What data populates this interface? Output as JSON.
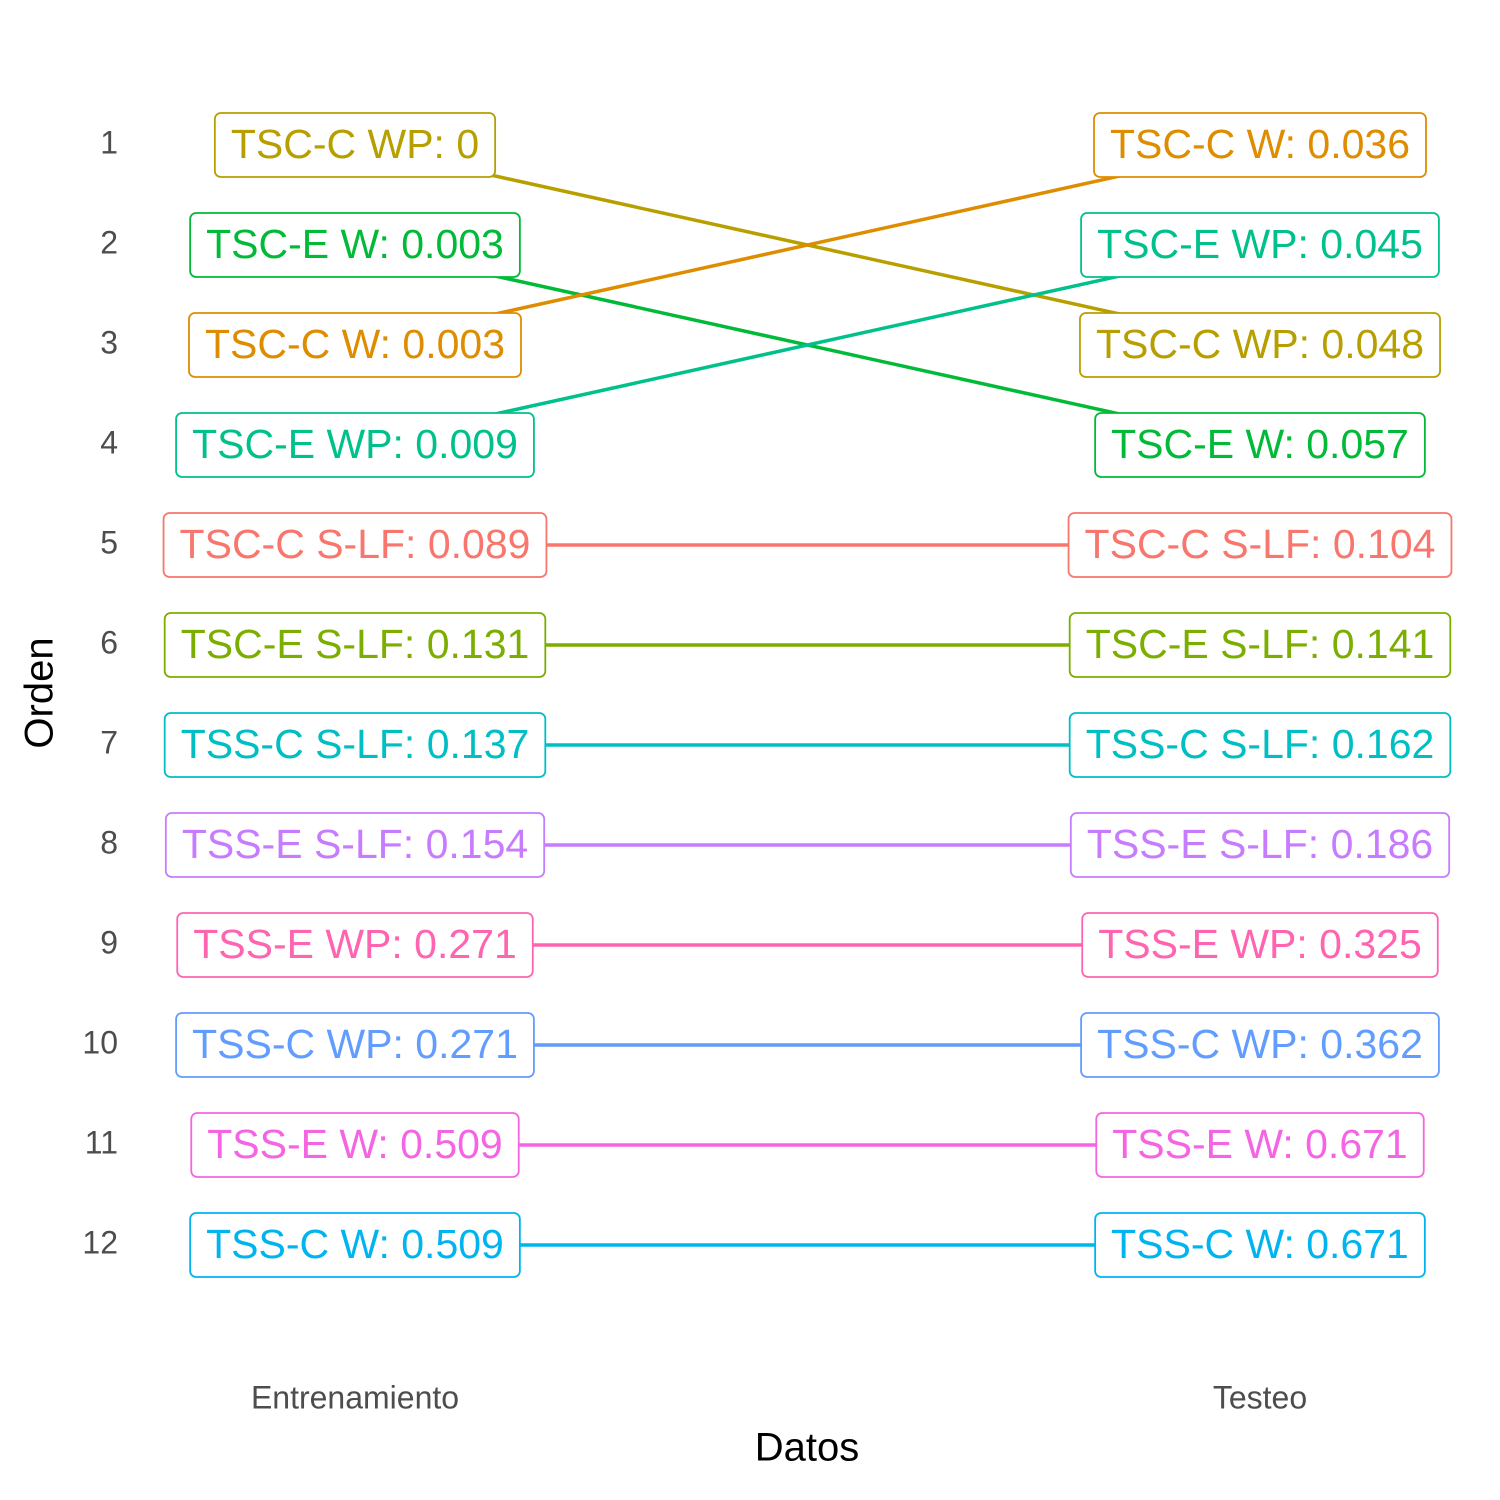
{
  "chart_data": {
    "type": "bump",
    "x_label": "Datos",
    "y_label": "Orden",
    "categories": [
      "Entrenamiento",
      "Testeo"
    ],
    "ylim": [
      12.7,
      0.3
    ],
    "yticks": [
      1,
      2,
      3,
      4,
      5,
      6,
      7,
      8,
      9,
      10,
      11,
      12
    ],
    "series": [
      {
        "color": "#b79f00",
        "ranks": [
          1,
          3
        ],
        "values": [
          0,
          0.048
        ],
        "value_labels": [
          "TSC-C WP: 0",
          "TSC-C WP: 0.048"
        ]
      },
      {
        "color": "#00ba38",
        "ranks": [
          2,
          4
        ],
        "values": [
          0.003,
          0.057
        ],
        "value_labels": [
          "TSC-E W: 0.003",
          "TSC-E W: 0.057"
        ]
      },
      {
        "color": "#de8c00",
        "ranks": [
          3,
          1
        ],
        "values": [
          0.003,
          0.036
        ],
        "value_labels": [
          "TSC-C W: 0.003",
          "TSC-C W: 0.036"
        ]
      },
      {
        "color": "#00c08b",
        "ranks": [
          4,
          2
        ],
        "values": [
          0.009,
          0.045
        ],
        "value_labels": [
          "TSC-E WP: 0.009",
          "TSC-E WP: 0.045"
        ]
      },
      {
        "color": "#f8766d",
        "ranks": [
          5,
          5
        ],
        "values": [
          0.089,
          0.104
        ],
        "value_labels": [
          "TSC-C S-LF: 0.089",
          "TSC-C S-LF: 0.104"
        ]
      },
      {
        "color": "#7cae00",
        "ranks": [
          6,
          6
        ],
        "values": [
          0.131,
          0.141
        ],
        "value_labels": [
          "TSC-E S-LF: 0.131",
          "TSC-E S-LF: 0.141"
        ]
      },
      {
        "color": "#00bfc4",
        "ranks": [
          7,
          7
        ],
        "values": [
          0.137,
          0.162
        ],
        "value_labels": [
          "TSS-C S-LF: 0.137",
          "TSS-C S-LF: 0.162"
        ]
      },
      {
        "color": "#c77cff",
        "ranks": [
          8,
          8
        ],
        "values": [
          0.154,
          0.186
        ],
        "value_labels": [
          "TSS-E S-LF: 0.154",
          "TSS-E S-LF: 0.186"
        ]
      },
      {
        "color": "#ff64b0",
        "ranks": [
          9,
          9
        ],
        "values": [
          0.271,
          0.325
        ],
        "value_labels": [
          "TSS-E WP: 0.271",
          "TSS-E WP: 0.325"
        ]
      },
      {
        "color": "#619cff",
        "ranks": [
          10,
          10
        ],
        "values": [
          0.271,
          0.362
        ],
        "value_labels": [
          "TSS-C WP: 0.271",
          "TSS-C WP: 0.362"
        ]
      },
      {
        "color": "#f564e3",
        "ranks": [
          11,
          11
        ],
        "values": [
          0.509,
          0.671
        ],
        "value_labels": [
          "TSS-E W: 0.509",
          "TSS-E W: 0.671"
        ]
      },
      {
        "color": "#00b4f0",
        "ranks": [
          12,
          12
        ],
        "values": [
          0.509,
          0.671
        ],
        "value_labels": [
          "TSS-C W: 0.509",
          "TSS-C W: 0.671"
        ]
      }
    ]
  }
}
